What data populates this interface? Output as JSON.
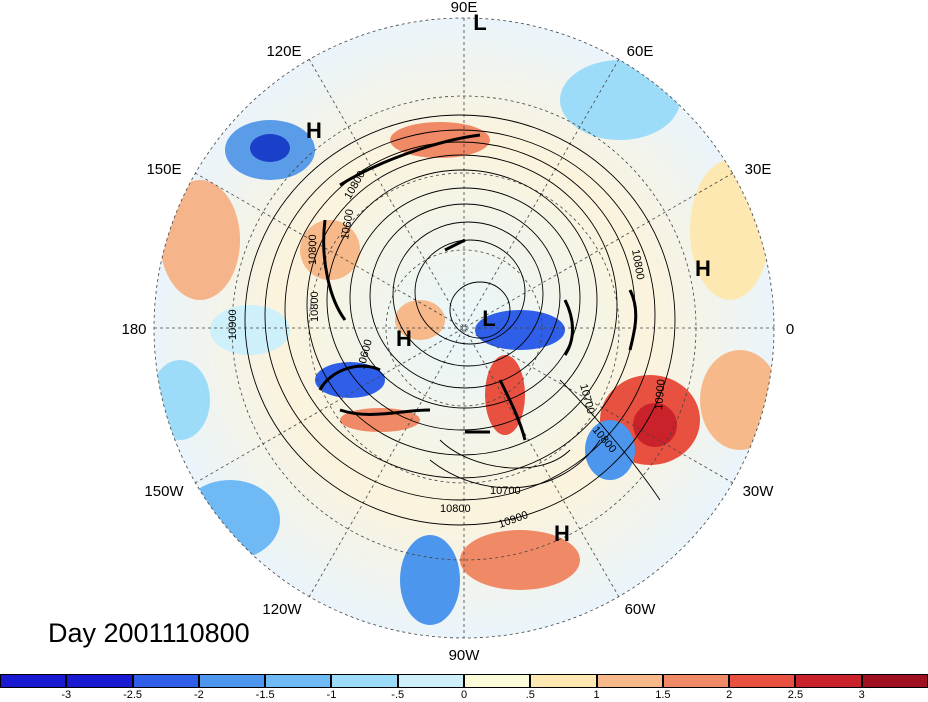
{
  "title": "Day 2001110800",
  "longitude_labels": [
    "90E",
    "60E",
    "30E",
    "0",
    "30W",
    "60W",
    "90W",
    "120W",
    "150W",
    "180",
    "150E",
    "120E"
  ],
  "pressure_centers": [
    {
      "label": "L",
      "name": "low-north"
    },
    {
      "label": "H",
      "name": "high-siberia"
    },
    {
      "label": "H",
      "name": "high-europe"
    },
    {
      "label": "L",
      "name": "low-arctic"
    },
    {
      "label": "H",
      "name": "high-alaska"
    },
    {
      "label": "H",
      "name": "high-atlantic"
    }
  ],
  "contour_labels": [
    "10800",
    "10800",
    "10900",
    "10800",
    "10600",
    "10800",
    "10700",
    "10900",
    "10800",
    "10700",
    "10800",
    "10900",
    "10600"
  ],
  "colorbar": {
    "ticks": [
      "-3",
      "-2.5",
      "-2",
      "-1.5",
      "-1",
      "-.5",
      "0",
      ".5",
      "1",
      "1.5",
      "2",
      "2.5",
      "3"
    ],
    "colors": [
      "#1a1ad2",
      "#2f5fe8",
      "#4d96ee",
      "#6fbaf4",
      "#9ddcf8",
      "#cdf0fb",
      "#fbfbd8",
      "#fce8b0",
      "#f7b989",
      "#f08a66",
      "#e8503f",
      "#c9222a",
      "#9e0f20"
    ]
  }
}
